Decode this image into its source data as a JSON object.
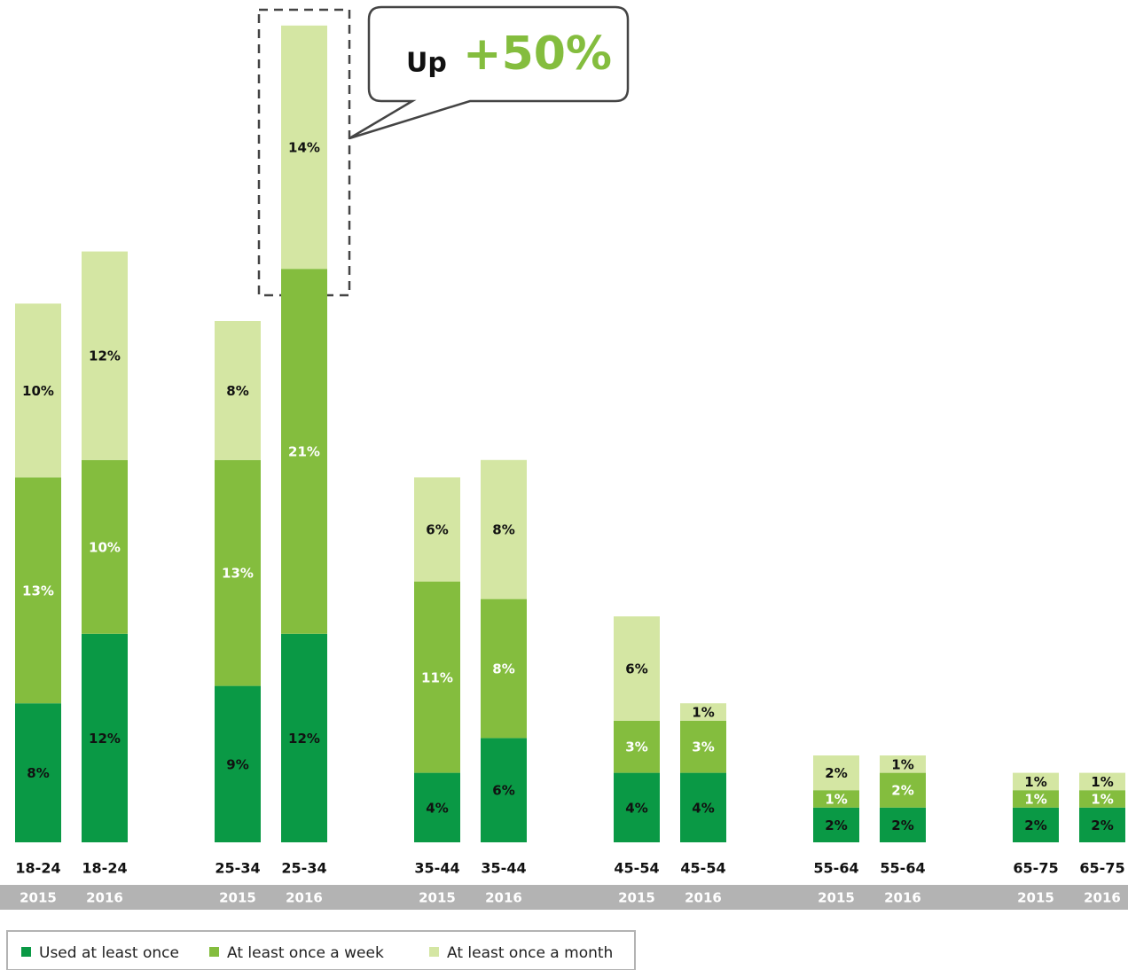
{
  "chart_data": {
    "type": "stacked_bar",
    "annotation": {
      "prefix": "Up",
      "highlight": "+50%"
    },
    "categories": [
      "18-24",
      "18-24",
      "25-34",
      "25-34",
      "35-44",
      "35-44",
      "45-54",
      "45-54",
      "55-64",
      "55-64",
      "65-75",
      "65-75"
    ],
    "years": [
      "2015",
      "2016",
      "2015",
      "2016",
      "2015",
      "2016",
      "2015",
      "2016",
      "2015",
      "2016",
      "2015",
      "2016"
    ],
    "series": [
      {
        "name": "Used at least once",
        "color": "#0a9945",
        "values": [
          8,
          12,
          9,
          12,
          4,
          6,
          4,
          4,
          2,
          2,
          2,
          2
        ],
        "value_labels": [
          "8%",
          "12%",
          "9%",
          "12%",
          "4%",
          "6%",
          "4%",
          "4%",
          "2%",
          "2%",
          "2%",
          "2%"
        ]
      },
      {
        "name": "At least once a week",
        "color": "#84bd3e",
        "values": [
          13,
          10,
          13,
          21,
          11,
          8,
          3,
          3,
          1,
          2,
          1,
          1
        ],
        "value_labels": [
          "13%",
          "10%",
          "13%",
          "21%",
          "11%",
          "8%",
          "3%",
          "3%",
          "1%",
          "2%",
          "1%",
          "1%"
        ]
      },
      {
        "name": "At least once a month",
        "color": "#d4e6a3",
        "values": [
          10,
          12,
          8,
          14,
          6,
          8,
          6,
          1,
          2,
          1,
          1,
          1
        ],
        "value_labels": [
          "10%",
          "12%",
          "8%",
          "14%",
          "6%",
          "8%",
          "6%",
          "1%",
          "2%",
          "1%",
          "1%",
          "1%"
        ]
      }
    ]
  }
}
